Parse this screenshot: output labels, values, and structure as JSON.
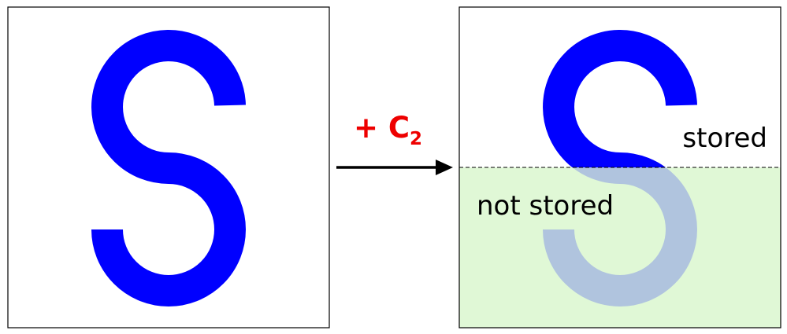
{
  "operation": {
    "prefix": "+ C",
    "subscript": "2",
    "color": "#ee0000"
  },
  "regions": {
    "stored_label": "stored",
    "not_stored_label": "not stored",
    "not_stored_fill": "#e0f8d6"
  },
  "shape": {
    "name": "S-shape",
    "primary_color": "#0000ff",
    "faded_color": "#b0c4de"
  },
  "arrow": {
    "color": "#000000"
  }
}
